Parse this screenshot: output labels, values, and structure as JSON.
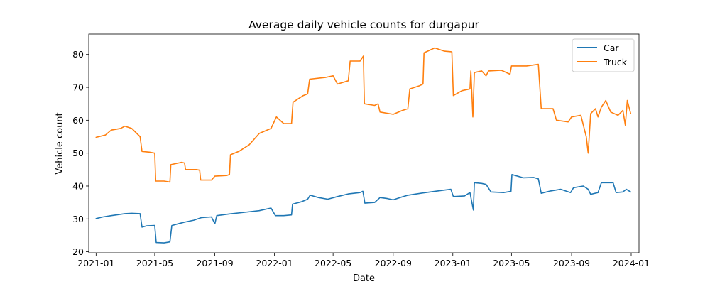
{
  "chart_data": {
    "type": "line",
    "title": "Average daily vehicle counts for durgapur",
    "xlabel": "Date",
    "ylabel": "Vehicle count",
    "xlim": [
      "2020-12-17",
      "2024-01-17"
    ],
    "ylim": [
      19.7,
      86.2
    ],
    "x_ticks": [
      "2021-01",
      "2021-05",
      "2021-09",
      "2022-01",
      "2022-05",
      "2022-09",
      "2023-01",
      "2023-05",
      "2023-09",
      "2024-01"
    ],
    "y_ticks": [
      20,
      30,
      40,
      50,
      60,
      70,
      80
    ],
    "grid": false,
    "legend": "top-right",
    "series": [
      {
        "name": "Car",
        "color": "#1f77b4",
        "points": [
          [
            "2021-01-01",
            30.1
          ],
          [
            "2021-01-15",
            30.6
          ],
          [
            "2021-02-01",
            31.0
          ],
          [
            "2021-02-15",
            31.3
          ],
          [
            "2021-03-01",
            31.6
          ],
          [
            "2021-03-15",
            31.7
          ],
          [
            "2021-04-01",
            31.6
          ],
          [
            "2021-04-05",
            27.5
          ],
          [
            "2021-04-15",
            27.9
          ],
          [
            "2021-05-01",
            28.0
          ],
          [
            "2021-05-04",
            22.8
          ],
          [
            "2021-05-20",
            22.7
          ],
          [
            "2021-06-01",
            23.0
          ],
          [
            "2021-06-05",
            28.0
          ],
          [
            "2021-06-20",
            28.6
          ],
          [
            "2021-07-01",
            29.0
          ],
          [
            "2021-07-20",
            29.6
          ],
          [
            "2021-08-05",
            30.4
          ],
          [
            "2021-08-25",
            30.6
          ],
          [
            "2021-09-01",
            28.5
          ],
          [
            "2021-09-05",
            31.0
          ],
          [
            "2021-10-01",
            31.5
          ],
          [
            "2021-11-01",
            32.0
          ],
          [
            "2021-12-01",
            32.5
          ],
          [
            "2021-12-25",
            33.3
          ],
          [
            "2022-01-03",
            31.0
          ],
          [
            "2022-01-20",
            31.0
          ],
          [
            "2022-02-05",
            31.2
          ],
          [
            "2022-02-07",
            34.5
          ],
          [
            "2022-02-25",
            35.2
          ],
          [
            "2022-03-10",
            36.0
          ],
          [
            "2022-03-15",
            37.2
          ],
          [
            "2022-04-01",
            36.5
          ],
          [
            "2022-04-20",
            36.0
          ],
          [
            "2022-05-10",
            36.8
          ],
          [
            "2022-06-01",
            37.6
          ],
          [
            "2022-06-25",
            38.0
          ],
          [
            "2022-07-01",
            38.4
          ],
          [
            "2022-07-05",
            34.8
          ],
          [
            "2022-07-25",
            35.0
          ],
          [
            "2022-08-05",
            36.5
          ],
          [
            "2022-08-20",
            36.2
          ],
          [
            "2022-09-01",
            35.8
          ],
          [
            "2022-09-15",
            36.5
          ],
          [
            "2022-10-01",
            37.2
          ],
          [
            "2022-11-01",
            37.9
          ],
          [
            "2022-12-01",
            38.5
          ],
          [
            "2022-12-28",
            39.0
          ],
          [
            "2023-01-02",
            36.8
          ],
          [
            "2023-01-25",
            37.0
          ],
          [
            "2023-02-05",
            38.0
          ],
          [
            "2023-02-12",
            32.7
          ],
          [
            "2023-02-14",
            41.0
          ],
          [
            "2023-03-01",
            40.8
          ],
          [
            "2023-03-10",
            40.5
          ],
          [
            "2023-03-20",
            38.2
          ],
          [
            "2023-04-15",
            38.0
          ],
          [
            "2023-04-30",
            38.4
          ],
          [
            "2023-05-02",
            43.5
          ],
          [
            "2023-05-25",
            42.5
          ],
          [
            "2023-06-15",
            42.6
          ],
          [
            "2023-06-25",
            42.2
          ],
          [
            "2023-07-01",
            37.8
          ],
          [
            "2023-07-20",
            38.5
          ],
          [
            "2023-08-10",
            39.0
          ],
          [
            "2023-08-30",
            38.0
          ],
          [
            "2023-09-05",
            39.5
          ],
          [
            "2023-09-25",
            40.0
          ],
          [
            "2023-10-05",
            39.0
          ],
          [
            "2023-10-10",
            37.5
          ],
          [
            "2023-10-25",
            38.0
          ],
          [
            "2023-11-01",
            41.0
          ],
          [
            "2023-11-25",
            41.0
          ],
          [
            "2023-12-01",
            38.0
          ],
          [
            "2023-12-15",
            38.2
          ],
          [
            "2023-12-22",
            39.0
          ],
          [
            "2023-12-31",
            38.2
          ]
        ]
      },
      {
        "name": "Truck",
        "color": "#ff7f0e",
        "points": [
          [
            "2021-01-01",
            54.8
          ],
          [
            "2021-01-20",
            55.5
          ],
          [
            "2021-02-01",
            57.0
          ],
          [
            "2021-02-20",
            57.5
          ],
          [
            "2021-03-01",
            58.2
          ],
          [
            "2021-03-15",
            57.5
          ],
          [
            "2021-04-01",
            55.0
          ],
          [
            "2021-04-05",
            50.5
          ],
          [
            "2021-04-20",
            50.3
          ],
          [
            "2021-05-01",
            50.0
          ],
          [
            "2021-05-03",
            41.5
          ],
          [
            "2021-05-20",
            41.5
          ],
          [
            "2021-06-01",
            41.2
          ],
          [
            "2021-06-03",
            46.5
          ],
          [
            "2021-06-25",
            47.2
          ],
          [
            "2021-07-01",
            47.0
          ],
          [
            "2021-07-03",
            45.0
          ],
          [
            "2021-07-25",
            45.0
          ],
          [
            "2021-08-01",
            44.8
          ],
          [
            "2021-08-03",
            41.8
          ],
          [
            "2021-08-25",
            41.8
          ],
          [
            "2021-09-01",
            43.0
          ],
          [
            "2021-09-25",
            43.2
          ],
          [
            "2021-10-01",
            43.5
          ],
          [
            "2021-10-03",
            49.5
          ],
          [
            "2021-10-20",
            50.5
          ],
          [
            "2021-11-10",
            52.5
          ],
          [
            "2021-12-01",
            56.0
          ],
          [
            "2021-12-25",
            57.5
          ],
          [
            "2022-01-05",
            61.0
          ],
          [
            "2022-01-20",
            59.0
          ],
          [
            "2022-02-05",
            59.0
          ],
          [
            "2022-02-08",
            65.5
          ],
          [
            "2022-03-01",
            67.5
          ],
          [
            "2022-03-10",
            68.0
          ],
          [
            "2022-03-14",
            72.5
          ],
          [
            "2022-04-15",
            73.0
          ],
          [
            "2022-05-01",
            73.5
          ],
          [
            "2022-05-10",
            71.0
          ],
          [
            "2022-06-01",
            72.0
          ],
          [
            "2022-06-05",
            78.0
          ],
          [
            "2022-06-25",
            78.0
          ],
          [
            "2022-07-02",
            79.5
          ],
          [
            "2022-07-04",
            65.0
          ],
          [
            "2022-07-25",
            64.5
          ],
          [
            "2022-08-01",
            65.0
          ],
          [
            "2022-08-05",
            62.5
          ],
          [
            "2022-09-01",
            61.8
          ],
          [
            "2022-09-20",
            63.0
          ],
          [
            "2022-10-01",
            63.5
          ],
          [
            "2022-10-05",
            69.5
          ],
          [
            "2022-10-25",
            70.5
          ],
          [
            "2022-11-01",
            71.0
          ],
          [
            "2022-11-03",
            80.5
          ],
          [
            "2022-11-25",
            82.0
          ],
          [
            "2022-12-15",
            81.0
          ],
          [
            "2022-12-30",
            80.8
          ],
          [
            "2023-01-02",
            67.5
          ],
          [
            "2023-01-20",
            69.0
          ],
          [
            "2023-02-05",
            69.5
          ],
          [
            "2023-02-07",
            75.0
          ],
          [
            "2023-02-11",
            61.0
          ],
          [
            "2023-02-14",
            74.5
          ],
          [
            "2023-03-01",
            75.0
          ],
          [
            "2023-03-10",
            73.5
          ],
          [
            "2023-03-15",
            75.0
          ],
          [
            "2023-04-10",
            75.2
          ],
          [
            "2023-04-28",
            74.0
          ],
          [
            "2023-05-01",
            76.5
          ],
          [
            "2023-06-01",
            76.5
          ],
          [
            "2023-06-25",
            77.0
          ],
          [
            "2023-07-01",
            63.5
          ],
          [
            "2023-07-25",
            63.5
          ],
          [
            "2023-08-01",
            60.0
          ],
          [
            "2023-08-25",
            59.5
          ],
          [
            "2023-09-01",
            61.0
          ],
          [
            "2023-09-20",
            61.5
          ],
          [
            "2023-10-01",
            55.0
          ],
          [
            "2023-10-05",
            50.0
          ],
          [
            "2023-10-10",
            62.0
          ],
          [
            "2023-10-20",
            63.5
          ],
          [
            "2023-10-25",
            61.0
          ],
          [
            "2023-11-01",
            64.0
          ],
          [
            "2023-11-10",
            66.0
          ],
          [
            "2023-11-20",
            62.5
          ],
          [
            "2023-12-05",
            61.5
          ],
          [
            "2023-12-15",
            63.0
          ],
          [
            "2023-12-20",
            58.5
          ],
          [
            "2023-12-24",
            66.0
          ],
          [
            "2023-12-31",
            62.0
          ]
        ]
      }
    ]
  }
}
